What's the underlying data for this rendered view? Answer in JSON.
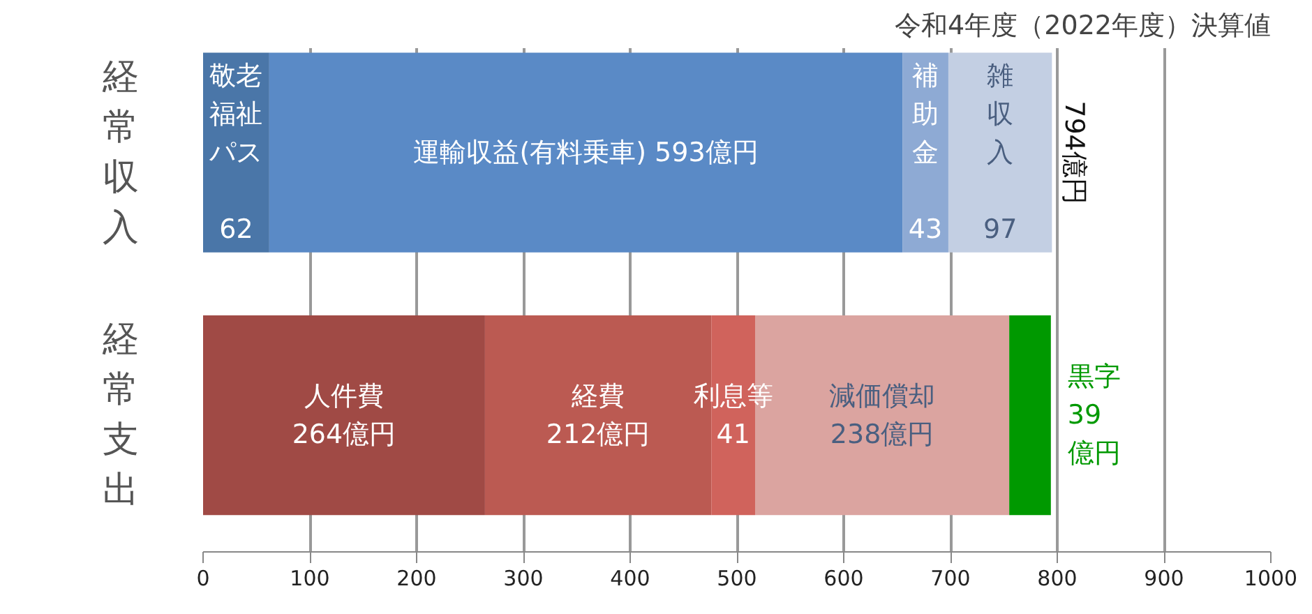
{
  "chart_data": {
    "type": "bar",
    "orientation": "horizontal",
    "stacked": true,
    "title": "令和4年度（2022年度）決算値",
    "categories": [
      "経常収入",
      "経常支出"
    ],
    "series": [
      {
        "color": "#4a76a8",
        "values": [
          62,
          null
        ],
        "value_labels": [
          "敬老福祉パス\n\n62",
          null
        ]
      },
      {
        "color": "#5a8ac6",
        "values": [
          593,
          null
        ],
        "value_labels": [
          "運輸収益(有料乗車) 593億円",
          null
        ]
      },
      {
        "color": "#8eaad4",
        "values": [
          43,
          null
        ],
        "value_labels": [
          "補助金\n\n43",
          null
        ]
      },
      {
        "color": "#c3cfe3",
        "values": [
          97,
          null
        ],
        "value_labels": [
          "雑収入\n\n97",
          null
        ]
      },
      {
        "color": "#a04a45",
        "values": [
          null,
          264
        ],
        "value_labels": [
          null,
          "人件費\n264億円"
        ]
      },
      {
        "color": "#bb5a52",
        "values": [
          null,
          212
        ],
        "value_labels": [
          null,
          "経費\n212億円"
        ]
      },
      {
        "color": "#d0635c",
        "values": [
          null,
          41
        ],
        "value_labels": [
          null,
          "利息等\n41"
        ]
      },
      {
        "color": "#dba4a0",
        "values": [
          null,
          238
        ],
        "value_labels": [
          null,
          "減価償却\n238億円"
        ]
      },
      {
        "color": "#009900",
        "values": [
          null,
          39
        ],
        "value_labels": [
          null,
          "黒字\n39\n億円"
        ]
      }
    ],
    "totals": [
      "794億円",
      null
    ],
    "xlim": [
      0,
      1000
    ],
    "xticks": [
      0,
      100,
      200,
      300,
      400,
      500,
      600,
      700,
      800,
      900,
      1000
    ],
    "grid": "x"
  }
}
